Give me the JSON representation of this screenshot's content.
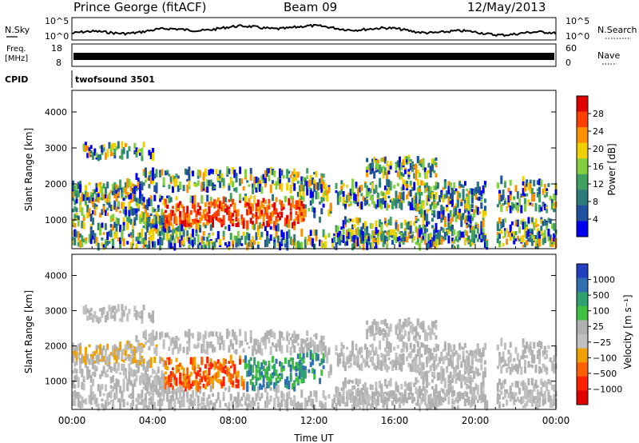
{
  "header": {
    "station": "Prince George (fitACF)",
    "beam": "Beam 09",
    "date": "12/May/2013"
  },
  "top_panels": {
    "noise": {
      "left_label": "N.Sky",
      "right_label": "N.Search",
      "left_ticks": [
        "10^5",
        "10^0"
      ],
      "right_ticks": [
        "10^5",
        "10^0"
      ]
    },
    "freq": {
      "left_label_line1": "Freq.",
      "left_label_line2": "[MHz]",
      "right_label": "Nave",
      "left_ticks": [
        "18",
        "8"
      ],
      "right_ticks": [
        "60",
        "0"
      ]
    },
    "cpid": {
      "label": "CPID",
      "value": "twofsound 3501"
    }
  },
  "chart_data": [
    {
      "type": "heatmap",
      "name": "power",
      "ylabel": "Slant Range [km]",
      "ylim": [
        200,
        4600
      ],
      "yticks": [
        1000,
        2000,
        3000,
        4000
      ],
      "xlabel": "",
      "xlim_hours": [
        0,
        24
      ],
      "colorbar": {
        "label": "Power [dB]",
        "ticks": [
          "28",
          "24",
          "20",
          "16",
          "12",
          "8",
          "4"
        ],
        "colors": [
          "#e00000",
          "#ff4000",
          "#ff9000",
          "#f0d000",
          "#80d040",
          "#40a060",
          "#2c7a7a",
          "#2050a0",
          "#0000f0"
        ]
      }
    },
    {
      "type": "heatmap",
      "name": "velocity",
      "ylabel": "Slant Range [km]",
      "ylim": [
        200,
        4600
      ],
      "yticks": [
        1000,
        2000,
        3000,
        4000
      ],
      "xlabel": "Time UT",
      "xlim_hours": [
        0,
        24
      ],
      "xticks": [
        "00:00",
        "04:00",
        "08:00",
        "12:00",
        "16:00",
        "20:00",
        "00:00"
      ],
      "colorbar": {
        "label": "Velocity [m s⁻¹]",
        "ticks": [
          "1000",
          "500",
          "100",
          "25",
          "−25",
          "−100",
          "−500",
          "−1000"
        ],
        "colors": [
          "#2040c0",
          "#3070b0",
          "#30a070",
          "#40c040",
          "#b0b0b0",
          "#c0c0c0",
          "#f0a000",
          "#ff6000",
          "#ff2000",
          "#e00000"
        ]
      }
    }
  ]
}
